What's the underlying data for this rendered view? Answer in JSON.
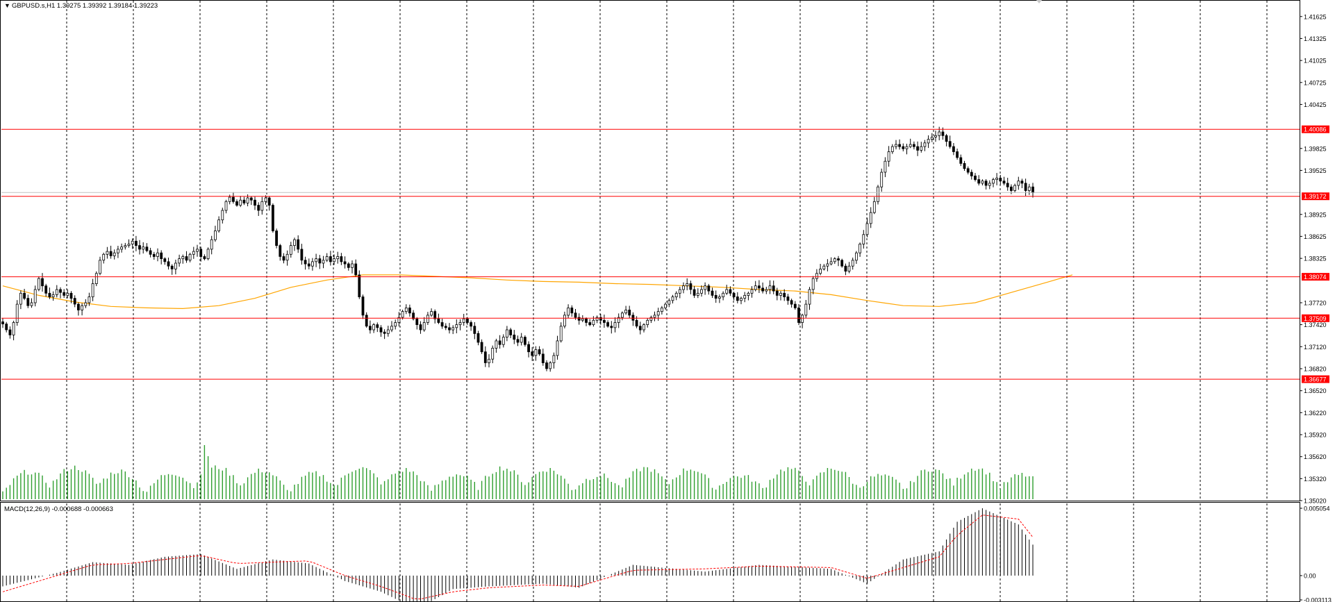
{
  "window": {
    "collapse_glyph": "▼",
    "symbol_line": "GBPUSD.s,H1  1.39275 1.39392 1.39184 1.39223"
  },
  "macd": {
    "title": "MACD(12,26,9) -0.000688 -0.000663"
  },
  "colors": {
    "background": "#ffffff",
    "candle": "#000000",
    "grid": "#000000",
    "level_line": "#ff0000",
    "level_label_bg": "#ff0000",
    "level_label_text": "#ffffff",
    "moving_average": "#ffa500",
    "volume": "#2e9e2e",
    "macd_hist": "#000000",
    "macd_signal": "#ff0000",
    "current_price_line": "#c0c0c0"
  },
  "chart_data": [
    {
      "type": "candlestick",
      "symbol": "GBPUSD.s",
      "timeframe": "H1",
      "ohlc_last": {
        "open": 1.39275,
        "high": 1.39392,
        "low": 1.39184,
        "close": 1.39223
      },
      "ylim": [
        1.3502,
        1.4185
      ],
      "y_ticks": [
        "1.41625",
        "1.41325",
        "1.41025",
        "1.40725",
        "1.40425",
        "1.39825",
        "1.39525",
        "1.38925",
        "1.38625",
        "1.38325",
        "1.37720",
        "1.37420",
        "1.37120",
        "1.36820",
        "1.36520",
        "1.36220",
        "1.35920",
        "1.35620",
        "1.35320",
        "1.35020"
      ],
      "levels": [
        {
          "price": 1.40086,
          "label": "1.40086"
        },
        {
          "price": 1.39172,
          "label": "1.39172"
        },
        {
          "price": 1.38074,
          "label": "1.38074"
        },
        {
          "price": 1.37509,
          "label": "1.37509"
        },
        {
          "price": 1.36677,
          "label": "1.36677"
        }
      ],
      "current_price": 1.39223,
      "close_path": [
        1.3743,
        1.3735,
        1.3728,
        1.3745,
        1.377,
        1.3785,
        1.3778,
        1.3768,
        1.3772,
        1.379,
        1.3805,
        1.3795,
        1.3785,
        1.378,
        1.3783,
        1.379,
        1.3786,
        1.3782,
        1.3785,
        1.3778,
        1.377,
        1.3762,
        1.3768,
        1.3772,
        1.378,
        1.3798,
        1.3812,
        1.383,
        1.3838,
        1.3842,
        1.3836,
        1.384,
        1.3845,
        1.3848,
        1.385,
        1.3852,
        1.3856,
        1.385,
        1.3845,
        1.3848,
        1.3843,
        1.3838,
        1.3835,
        1.384,
        1.3832,
        1.3828,
        1.3822,
        1.3818,
        1.3826,
        1.3832,
        1.3835,
        1.383,
        1.3838,
        1.3842,
        1.3845,
        1.3835,
        1.3832,
        1.3845,
        1.3858,
        1.387,
        1.3885,
        1.3898,
        1.391,
        1.3916,
        1.391,
        1.3905,
        1.3912,
        1.3908,
        1.3915,
        1.3912,
        1.3905,
        1.3898,
        1.391,
        1.3915,
        1.3905,
        1.387,
        1.385,
        1.3835,
        1.383,
        1.3838,
        1.385,
        1.3858,
        1.3845,
        1.383,
        1.3825,
        1.3822,
        1.3828,
        1.3832,
        1.3826,
        1.383,
        1.3835,
        1.3828,
        1.3832,
        1.3835,
        1.3828,
        1.3825,
        1.382,
        1.3825,
        1.381,
        1.378,
        1.3755,
        1.374,
        1.3735,
        1.3742,
        1.3738,
        1.3732,
        1.373,
        1.3735,
        1.374,
        1.3745,
        1.3752,
        1.376,
        1.3765,
        1.3758,
        1.375,
        1.3742,
        1.3735,
        1.3745,
        1.3755,
        1.376,
        1.375,
        1.3745,
        1.374,
        1.3738,
        1.3735,
        1.3738,
        1.3742,
        1.3745,
        1.375,
        1.3745,
        1.374,
        1.373,
        1.3718,
        1.3705,
        1.369,
        1.3695,
        1.371,
        1.372,
        1.3715,
        1.3725,
        1.3735,
        1.3728,
        1.3722,
        1.3718,
        1.3725,
        1.3715,
        1.3705,
        1.37,
        1.3708,
        1.3702,
        1.369,
        1.3682,
        1.369,
        1.37,
        1.372,
        1.374,
        1.3755,
        1.3765,
        1.3758,
        1.3752,
        1.3748,
        1.375,
        1.3745,
        1.3742,
        1.3748,
        1.3752,
        1.3748,
        1.3745,
        1.374,
        1.3738,
        1.3745,
        1.3752,
        1.3758,
        1.3762,
        1.3755,
        1.3748,
        1.374,
        1.3735,
        1.3742,
        1.3748,
        1.3752,
        1.3755,
        1.376,
        1.3765,
        1.377,
        1.3775,
        1.378,
        1.3785,
        1.379,
        1.3795,
        1.3798,
        1.379,
        1.3782,
        1.3785,
        1.379,
        1.3795,
        1.3788,
        1.3782,
        1.3778,
        1.378,
        1.3785,
        1.379,
        1.3785,
        1.378,
        1.3775,
        1.3778,
        1.3782,
        1.3785,
        1.379,
        1.3795,
        1.3792,
        1.3788,
        1.379,
        1.3795,
        1.3788,
        1.3782,
        1.3785,
        1.378,
        1.3775,
        1.377,
        1.3765,
        1.3745,
        1.3755,
        1.377,
        1.379,
        1.3805,
        1.3812,
        1.3818,
        1.3822,
        1.3825,
        1.3828,
        1.3832,
        1.383,
        1.3822,
        1.3815,
        1.3822,
        1.383,
        1.384,
        1.3852,
        1.3865,
        1.388,
        1.3895,
        1.391,
        1.393,
        1.395,
        1.3965,
        1.3978,
        1.3985,
        1.3988,
        1.3985,
        1.3982,
        1.3985,
        1.3988,
        1.3985,
        1.398,
        1.3985,
        1.399,
        1.3995,
        1.3998,
        1.4,
        1.4005,
        1.4,
        1.3992,
        1.3985,
        1.3978,
        1.397,
        1.3962,
        1.3955,
        1.395,
        1.3945,
        1.394,
        1.3935,
        1.3938,
        1.3932,
        1.3935,
        1.394,
        1.3942,
        1.3938,
        1.3935,
        1.393,
        1.3925,
        1.3932,
        1.3938,
        1.3935,
        1.3925,
        1.393,
        1.3922
      ],
      "moving_average": [
        [
          0,
          1.3795
        ],
        [
          10,
          1.3782
        ],
        [
          20,
          1.3773
        ],
        [
          30,
          1.3767
        ],
        [
          40,
          1.3765
        ],
        [
          50,
          1.3764
        ],
        [
          60,
          1.3768
        ],
        [
          70,
          1.3778
        ],
        [
          80,
          1.3793
        ],
        [
          90,
          1.3803
        ],
        [
          100,
          1.381
        ],
        [
          110,
          1.381
        ],
        [
          120,
          1.3808
        ],
        [
          130,
          1.3806
        ],
        [
          140,
          1.3803
        ],
        [
          150,
          1.3801
        ],
        [
          160,
          1.38
        ],
        [
          170,
          1.3798
        ],
        [
          180,
          1.3797
        ],
        [
          190,
          1.3795
        ],
        [
          200,
          1.3793
        ],
        [
          210,
          1.379
        ],
        [
          220,
          1.3788
        ],
        [
          230,
          1.3783
        ],
        [
          240,
          1.3775
        ],
        [
          250,
          1.3768
        ],
        [
          260,
          1.3767
        ],
        [
          270,
          1.3772
        ],
        [
          280,
          1.3786
        ],
        [
          290,
          1.38
        ],
        [
          297,
          1.381
        ]
      ]
    },
    {
      "type": "bar",
      "name_hint": "volume",
      "description": "tick volume histogram in lower part of main window",
      "bar_count": 297
    },
    {
      "type": "macd",
      "title": "MACD(12,26,9) -0.000688 -0.000663",
      "y_ticks": [
        "0.005054",
        "0.00",
        "-0.003113"
      ],
      "ylim": [
        -0.003113,
        0.005054
      ],
      "histogram_path": [
        [
          0,
          -0.0008
        ],
        [
          15,
          0.0002
        ],
        [
          25,
          0.001
        ],
        [
          35,
          0.0008
        ],
        [
          45,
          0.0014
        ],
        [
          55,
          0.0016
        ],
        [
          65,
          0.0005
        ],
        [
          75,
          0.0012
        ],
        [
          85,
          0.0009
        ],
        [
          95,
          -0.0004
        ],
        [
          105,
          -0.0012
        ],
        [
          115,
          -0.0025
        ],
        [
          125,
          -0.001
        ],
        [
          135,
          -0.0008
        ],
        [
          150,
          -0.0006
        ],
        [
          160,
          -0.0009
        ],
        [
          175,
          0.0008
        ],
        [
          195,
          0.0003
        ],
        [
          210,
          0.0008
        ],
        [
          230,
          0.0005
        ],
        [
          240,
          -0.0006
        ],
        [
          250,
          0.0012
        ],
        [
          260,
          0.0018
        ],
        [
          265,
          0.004
        ],
        [
          272,
          0.005
        ],
        [
          282,
          0.0038
        ],
        [
          290,
          0.0008
        ],
        [
          297,
          -0.0007
        ]
      ],
      "signal_path": [
        [
          0,
          -0.0012
        ],
        [
          15,
          0.0
        ],
        [
          25,
          0.0008
        ],
        [
          35,
          0.0009
        ],
        [
          45,
          0.0012
        ],
        [
          55,
          0.0015
        ],
        [
          65,
          0.0009
        ],
        [
          75,
          0.001
        ],
        [
          85,
          0.0011
        ],
        [
          95,
          0.0
        ],
        [
          105,
          -0.0008
        ],
        [
          115,
          -0.0018
        ],
        [
          125,
          -0.0012
        ],
        [
          135,
          -0.0009
        ],
        [
          150,
          -0.0007
        ],
        [
          160,
          -0.0008
        ],
        [
          175,
          0.0004
        ],
        [
          195,
          0.0005
        ],
        [
          210,
          0.0007
        ],
        [
          230,
          0.0006
        ],
        [
          240,
          -0.0002
        ],
        [
          250,
          0.0006
        ],
        [
          260,
          0.0014
        ],
        [
          265,
          0.003
        ],
        [
          272,
          0.0045
        ],
        [
          282,
          0.0042
        ],
        [
          290,
          0.0015
        ],
        [
          297,
          -0.0006
        ]
      ]
    }
  ]
}
